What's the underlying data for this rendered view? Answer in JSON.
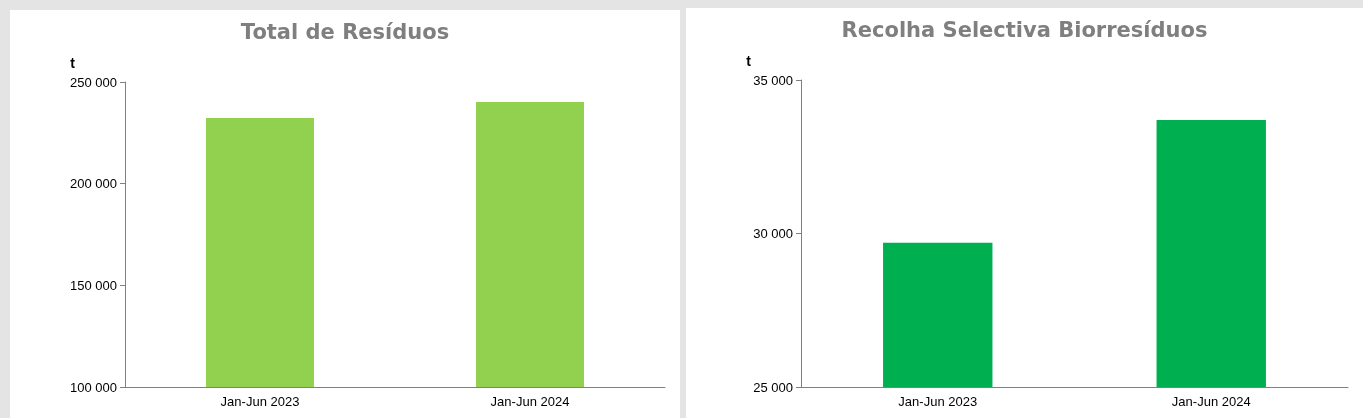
{
  "chart_data": [
    {
      "type": "bar",
      "title": "Total de Resíduos",
      "ylabel": "t",
      "categories": [
        "Jan-Jun 2023",
        "Jan-Jun 2024"
      ],
      "values": [
        232300,
        240200
      ],
      "color": "#92d050",
      "ylim": [
        100000,
        250000
      ],
      "yticks": [
        {
          "value": 100000,
          "label": "100 000"
        },
        {
          "value": 150000,
          "label": "150 000"
        },
        {
          "value": 200000,
          "label": "200 000"
        },
        {
          "value": 250000,
          "label": "250 000"
        }
      ],
      "grid": false
    },
    {
      "type": "bar",
      "title": "Recolha Selectiva Biorresíduos",
      "ylabel": "t",
      "categories": [
        "Jan-Jun 2023",
        "Jan-Jun 2024"
      ],
      "values": [
        29700,
        33700
      ],
      "color": "#00b050",
      "ylim": [
        25000,
        35000
      ],
      "yticks": [
        {
          "value": 25000,
          "label": "25 000"
        },
        {
          "value": 30000,
          "label": "30 000"
        },
        {
          "value": 35000,
          "label": "35 000"
        }
      ],
      "grid": false
    }
  ]
}
